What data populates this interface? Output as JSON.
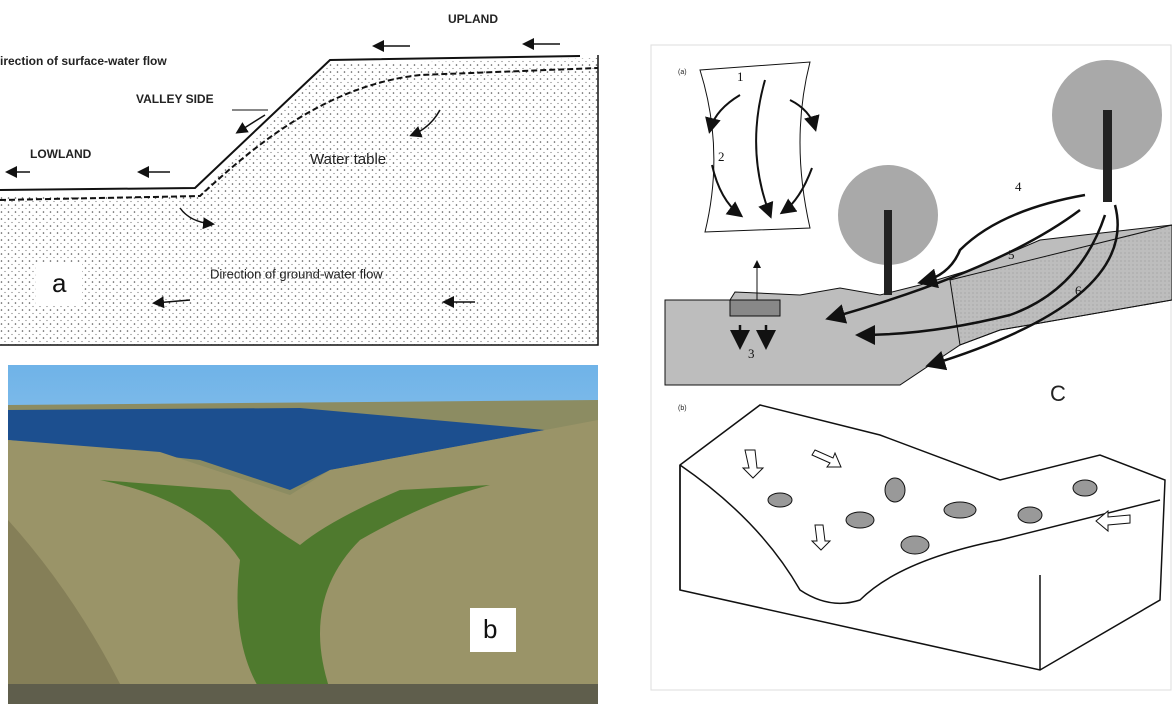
{
  "panel_a": {
    "upland": "UPLAND",
    "surface_flow": "irection of surface-water flow",
    "valley_side": "VALLEY SIDE",
    "lowland": "LOWLAND",
    "water_table": "Water table",
    "ground_flow": "Direction of ground-water flow",
    "label": "a"
  },
  "panel_b": {
    "label": "b"
  },
  "panel_c": {
    "label": "C",
    "sub_a": "(a)",
    "sub_b": "(b)",
    "numbers": [
      "1",
      "2",
      "3",
      "4",
      "5",
      "6"
    ]
  }
}
